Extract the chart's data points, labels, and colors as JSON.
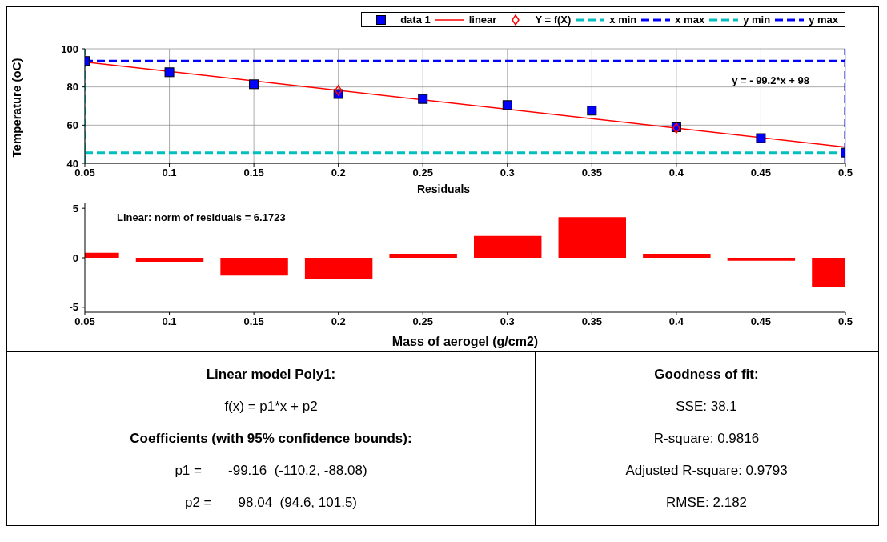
{
  "chart_data": [
    {
      "type": "scatter",
      "ylabel": "Temperature (oC)",
      "xlim": [
        0.05,
        0.5
      ],
      "xticks": [
        0.05,
        0.1,
        0.15,
        0.2,
        0.25,
        0.3,
        0.35,
        0.4,
        0.45,
        0.5
      ],
      "ylim": [
        40,
        100
      ],
      "yticks": [
        40,
        60,
        80,
        100
      ],
      "grid": true,
      "legend": "top right",
      "annotations": [
        "y = - 99.2*x + 98"
      ],
      "x": [
        0.05,
        0.1,
        0.15,
        0.2,
        0.25,
        0.3,
        0.35,
        0.4,
        0.45,
        0.5
      ],
      "series": [
        {
          "name": "data 1",
          "type": "scatter",
          "marker": "square",
          "color": "#0000ff",
          "values": [
            93.6,
            87.7,
            81.4,
            76.3,
            73.7,
            70.5,
            67.6,
            58.9,
            53.2,
            45.6
          ]
        },
        {
          "name": "linear",
          "type": "line",
          "color": "#ff0000",
          "x": [
            0.05,
            0.5
          ],
          "values": [
            93.1,
            48.5
          ]
        },
        {
          "name": "Y = f(X)",
          "type": "scatter",
          "marker": "diamond",
          "color": "#ff0000",
          "x": [
            0.2,
            0.4
          ],
          "values": [
            78.2,
            58.4
          ]
        },
        {
          "name": "x min",
          "type": "line",
          "line_style": "dashed",
          "color": "#00bfbf",
          "x": [
            0.05,
            0.05
          ],
          "values": [
            40,
            100
          ]
        },
        {
          "name": "x max",
          "type": "line",
          "line_style": "dashed",
          "color": "#0000ff",
          "x": [
            0.5,
            0.5
          ],
          "values": [
            40,
            100
          ]
        },
        {
          "name": "y min",
          "type": "line",
          "line_style": "dashed",
          "color": "#00bfbf",
          "x": [
            0.05,
            0.5
          ],
          "values": [
            45.6,
            45.6
          ]
        },
        {
          "name": "y max",
          "type": "line",
          "line_style": "dashed",
          "color": "#0000ff",
          "x": [
            0.05,
            0.5
          ],
          "values": [
            93.6,
            93.6
          ]
        }
      ]
    },
    {
      "type": "bar",
      "title": "Residuals",
      "xlabel": "Mass of aerogel (g/cm2)",
      "xlim": [
        0.05,
        0.5
      ],
      "xticks": [
        0.05,
        0.1,
        0.15,
        0.2,
        0.25,
        0.3,
        0.35,
        0.4,
        0.45,
        0.5
      ],
      "ylim": [
        -5.5,
        5.5
      ],
      "yticks": [
        -5,
        0,
        5
      ],
      "color": "#ff0000",
      "annotations": [
        "Linear: norm of residuals = 6.1723"
      ],
      "x": [
        0.05,
        0.1,
        0.15,
        0.2,
        0.25,
        0.3,
        0.35,
        0.4,
        0.45,
        0.5
      ],
      "values": [
        0.5,
        -0.4,
        -1.8,
        -2.1,
        0.4,
        2.2,
        4.1,
        0.4,
        -0.3,
        -3.0
      ]
    },
    {
      "type": "other",
      "title": "Linear model Poly1:",
      "annotations": [
        "f(x) = p1*x + p2",
        "Coefficients (with 95% confidence bounds):",
        "p1 =       -99.16  (-110.2, -88.08)",
        "p2 =       98.04  (94.6, 101.5)"
      ]
    },
    {
      "type": "other",
      "title": "Goodness of fit:",
      "annotations": [
        "SSE: 38.1",
        "R-square: 0.9816",
        "Adjusted R-square: 0.9793",
        "RMSE: 2.182"
      ]
    }
  ]
}
